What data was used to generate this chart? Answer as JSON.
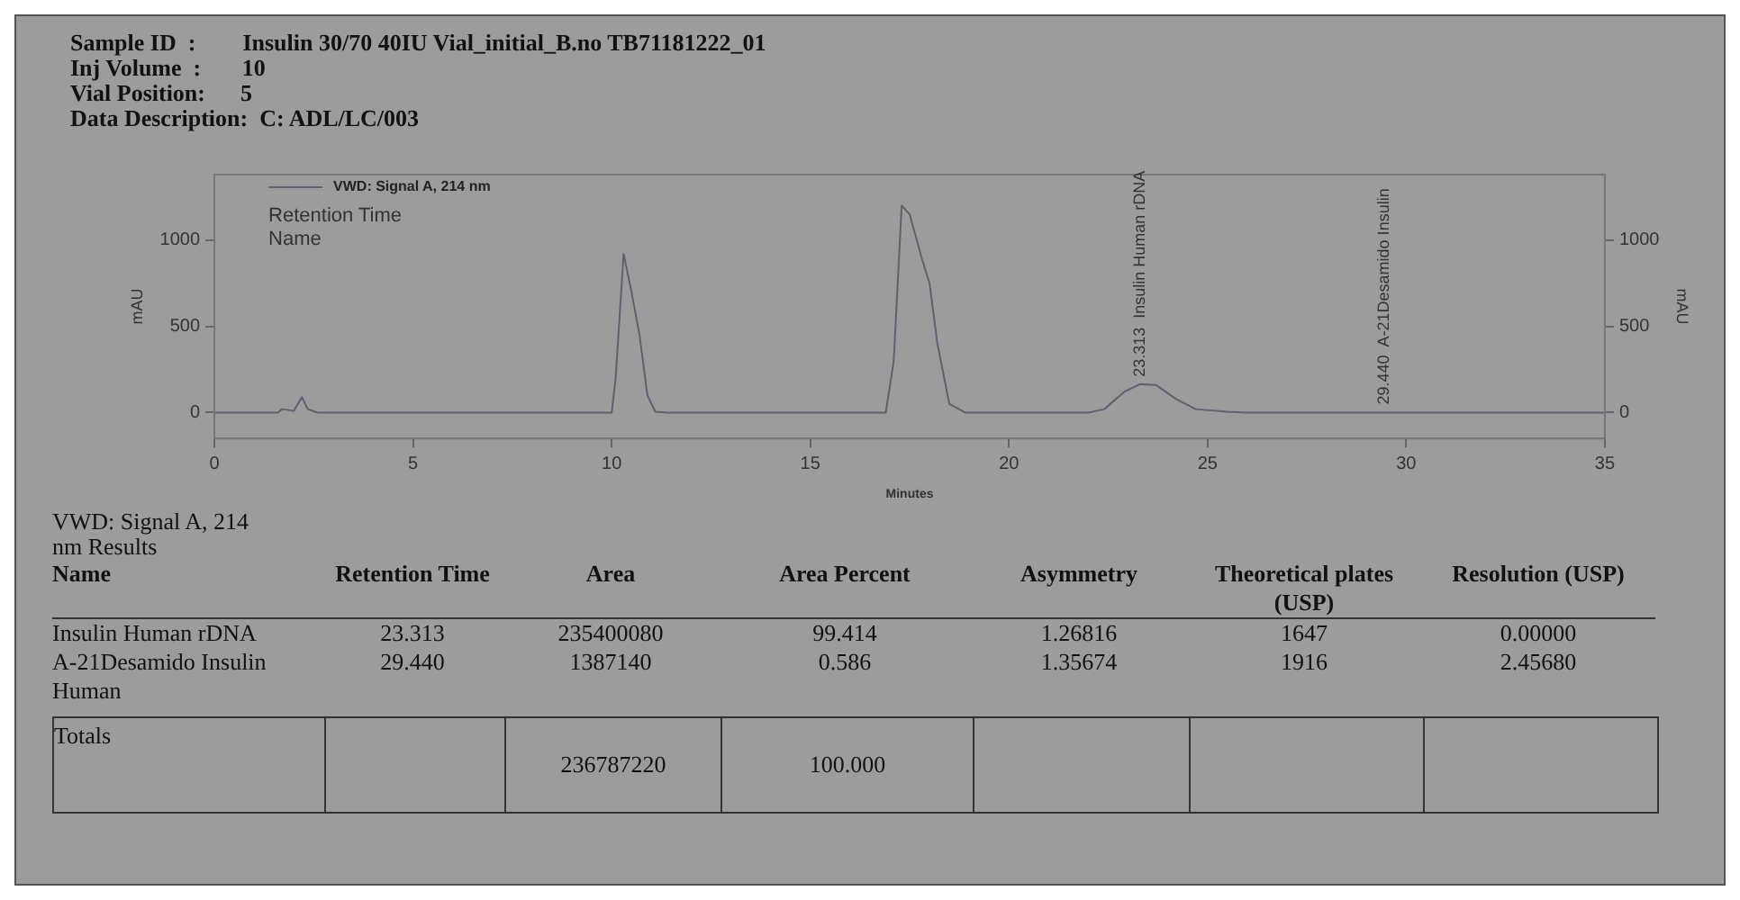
{
  "chart_data": {
    "type": "line",
    "xlabel": "Minutes",
    "ylabel": "mAU",
    "y2label": "mAU",
    "x": [
      0,
      1.6,
      1.7,
      2.0,
      2.2,
      2.35,
      2.6,
      10.0,
      10.1,
      10.3,
      10.5,
      10.7,
      10.9,
      11.1,
      11.4,
      16.9,
      17.1,
      17.3,
      17.5,
      17.8,
      18.0,
      18.2,
      18.5,
      18.9,
      22.0,
      22.4,
      22.9,
      23.3,
      23.7,
      24.2,
      24.7,
      25.5,
      26.0,
      35
    ],
    "series": [
      {
        "name": "VWD: Signal A, 214 nm",
        "color": "#60606e",
        "values": [
          0,
          0,
          20,
          10,
          90,
          20,
          0,
          0,
          200,
          920,
          700,
          450,
          100,
          5,
          0,
          0,
          300,
          1200,
          1150,
          900,
          750,
          400,
          50,
          0,
          0,
          20,
          120,
          165,
          160,
          80,
          20,
          5,
          0,
          0
        ]
      }
    ],
    "xlim": [
      0,
      35
    ],
    "xticks": [
      0,
      5,
      10,
      15,
      20,
      25,
      30,
      35
    ],
    "ylim": [
      -150,
      1380
    ],
    "yticks": [
      0,
      500,
      1000
    ],
    "y2lim": [
      -150,
      1380
    ],
    "y2ticks": [
      0,
      500,
      1000
    ],
    "grid": false,
    "legend": "top left",
    "marker": "none",
    "line_style": "solid",
    "annotations": [
      "Sample ID  :        Insulin 30/70 40IU Vial_initial_B.no TB71181222_01",
      "Inj Volume  :       10",
      "Vial Position:      5",
      "Data Description:  C: ADL/LC/003",
      "Retention Time",
      "Name",
      {
        "text": "23.313  Insulin Human rDNA",
        "x": 23.313,
        "y": 165
      },
      {
        "text": "29.440  A-21Desamido Insulin",
        "x": 29.44,
        "y": 5
      },
      "VWD: Signal A, 214 nm Results",
      "Name",
      "Retention Time",
      "Area",
      "Area Percent",
      "Asymmetry",
      "Theoretical plates (USP)",
      "Resolution (USP)",
      "Insulin Human rDNA",
      "23.313",
      "235400080",
      "99.414",
      "1.26816",
      "1647",
      "0.00000",
      "A-21Desamido Insulin Human",
      "29.440",
      "1387140",
      "0.586",
      "1.35674",
      "1916",
      "2.45680",
      "Totals",
      "236787220",
      "100.000"
    ]
  }
}
